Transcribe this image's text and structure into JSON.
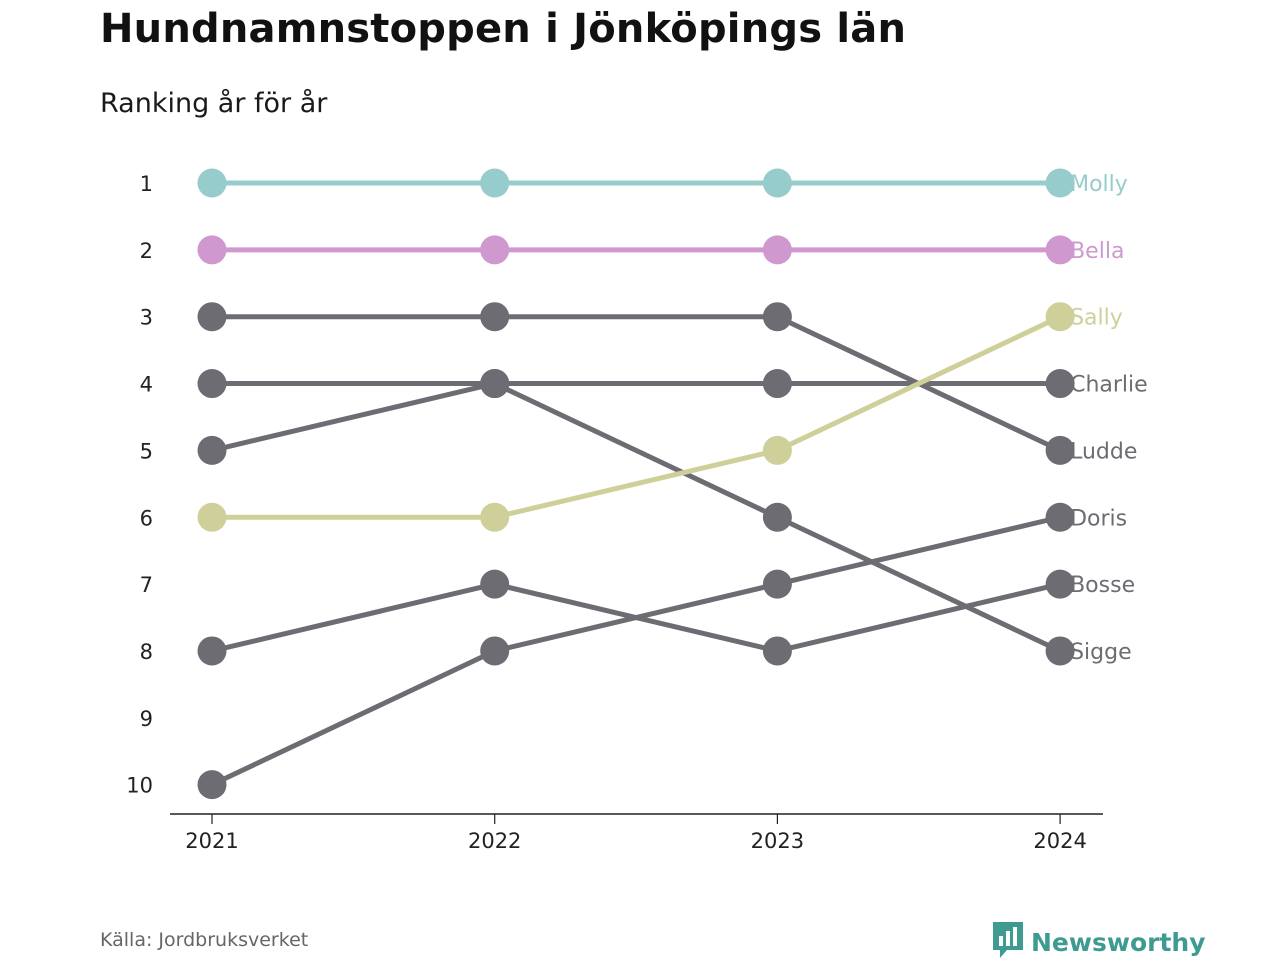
{
  "header": {
    "title": "Hundnamnstoppen i Jönköpings län",
    "subtitle": "Ranking år för år"
  },
  "footer": {
    "source": "Källa: Jordbruksverket",
    "brand": "Newsworthy",
    "brand_icon": "bar-chart-speech-icon"
  },
  "colors": {
    "default": "#6d6c73",
    "Molly": "#96cccb",
    "Bella": "#cf99cf",
    "Sally": "#cfcf99",
    "axis": "#222222",
    "brand": "#3e9b91"
  },
  "chart_data": {
    "type": "line",
    "subtype": "bump",
    "x": [
      "2021",
      "2022",
      "2023",
      "2024"
    ],
    "y_ticks": [
      "1",
      "2",
      "3",
      "4",
      "5",
      "6",
      "7",
      "8",
      "9",
      "10"
    ],
    "y_reversed": true,
    "ylim": [
      1,
      10
    ],
    "grid": false,
    "legend": "end-labels",
    "series": [
      {
        "name": "Molly",
        "values": [
          1,
          1,
          1,
          1
        ],
        "highlight": true
      },
      {
        "name": "Bella",
        "values": [
          2,
          2,
          2,
          2
        ],
        "highlight": true
      },
      {
        "name": "Sally",
        "values": [
          6,
          6,
          5,
          3
        ],
        "highlight": true
      },
      {
        "name": "Charlie",
        "values": [
          4,
          4,
          4,
          4
        ],
        "highlight": false
      },
      {
        "name": "Ludde",
        "values": [
          3,
          3,
          3,
          5
        ],
        "highlight": false
      },
      {
        "name": "Doris",
        "values": [
          10,
          8,
          7,
          6
        ],
        "highlight": false
      },
      {
        "name": "Bosse",
        "values": [
          8,
          7,
          8,
          7
        ],
        "highlight": false
      },
      {
        "name": "Sigge",
        "values": [
          5,
          4,
          6,
          8
        ],
        "highlight": false
      }
    ]
  }
}
